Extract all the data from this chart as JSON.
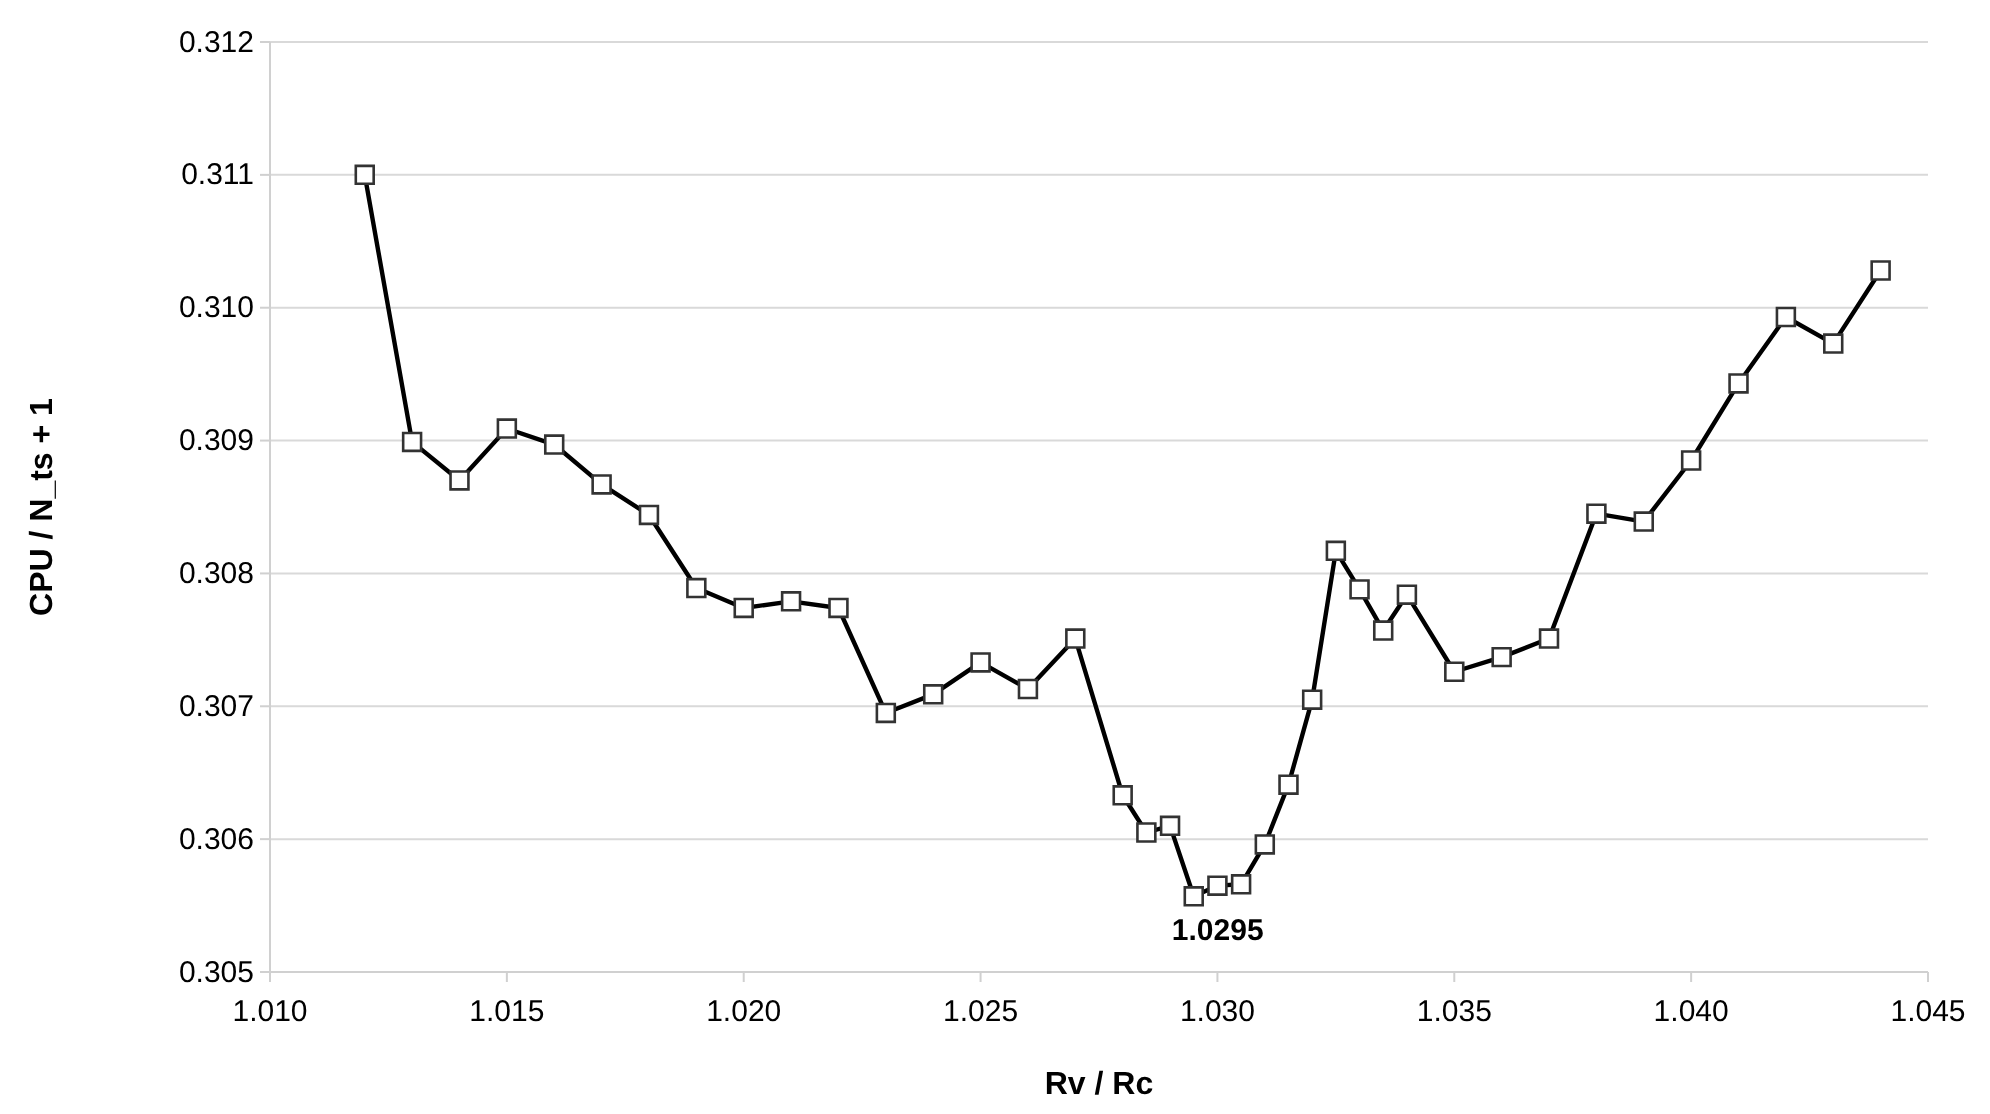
{
  "chart_data": {
    "type": "line",
    "xlabel": "Rv / Rc",
    "ylabel": "CPU / N_ts + 1",
    "x": [
      1.012,
      1.013,
      1.014,
      1.015,
      1.016,
      1.017,
      1.018,
      1.019,
      1.02,
      1.021,
      1.022,
      1.023,
      1.024,
      1.025,
      1.026,
      1.027,
      1.028,
      1.0285,
      1.029,
      1.0295,
      1.03,
      1.0305,
      1.031,
      1.0315,
      1.032,
      1.0325,
      1.033,
      1.0335,
      1.034,
      1.035,
      1.036,
      1.037,
      1.038,
      1.039,
      1.04,
      1.041,
      1.042,
      1.043,
      1.044
    ],
    "series": [
      {
        "color": "#000000",
        "values": [
          0.311,
          0.30899,
          0.3087,
          0.30909,
          0.30897,
          0.30867,
          0.30844,
          0.30789,
          0.30774,
          0.30779,
          0.30774,
          0.30695,
          0.30709,
          0.30733,
          0.30713,
          0.30751,
          0.30633,
          0.30605,
          0.3061,
          0.30557,
          0.30565,
          0.30566,
          0.30596,
          0.30641,
          0.30705,
          0.30817,
          0.30788,
          0.30757,
          0.30784,
          0.30726,
          0.30737,
          0.30751,
          0.30845,
          0.30839,
          0.30885,
          0.30943,
          0.30993,
          0.30973,
          0.31028
        ]
      }
    ],
    "xlim": [
      1.01,
      1.045
    ],
    "xticks": [
      {
        "value": 1.01,
        "label": "1.010"
      },
      1.015,
      {
        "value": 1.02,
        "label": "1.020"
      },
      1.025,
      {
        "value": 1.03,
        "label": "1.030"
      },
      1.035,
      {
        "value": 1.04,
        "label": "1.040"
      },
      1.045
    ],
    "ylim": [
      0.305,
      0.312
    ],
    "yticks": [
      0.305,
      0.306,
      0.307,
      0.308,
      0.309,
      {
        "value": 0.31,
        "label": "0.310"
      },
      0.311,
      0.312
    ],
    "grid": "y",
    "marker": "square",
    "line_style": "solid",
    "annotations": [
      {
        "text": "1.0295",
        "x": 1.0295,
        "y": 0.30557
      }
    ]
  }
}
